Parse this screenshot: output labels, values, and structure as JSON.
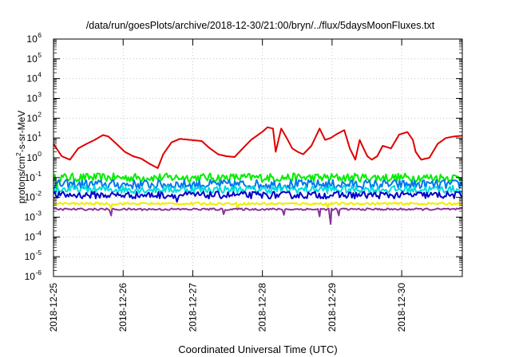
{
  "chart_data": {
    "type": "line",
    "title": "/data/run/goesPlots/archive/2018-12-30/21:00/bryn/../flux/5daysMoonFluxes.txt",
    "xlabel": "Coordinated Universal Time (UTC)",
    "ylabel": "protons/cm²-s-sr-MeV",
    "ylabel_parts": {
      "pre": "protons/cm",
      "sup": "2",
      "post": "-s-sr-MeV"
    },
    "y_scale": "log",
    "ylim": [
      1e-06,
      1000000.0
    ],
    "y_ticks": [
      {
        "exp": -6,
        "base": "10",
        "sup": "-6"
      },
      {
        "exp": -5,
        "base": "10",
        "sup": "-5"
      },
      {
        "exp": -4,
        "base": "10",
        "sup": "-4"
      },
      {
        "exp": -3,
        "base": "10",
        "sup": "-3"
      },
      {
        "exp": -2,
        "base": "10",
        "sup": "-2"
      },
      {
        "exp": -1,
        "base": "10",
        "sup": "-1"
      },
      {
        "exp": 0,
        "base": "10",
        "sup": "0"
      },
      {
        "exp": 1,
        "base": "10",
        "sup": "1"
      },
      {
        "exp": 2,
        "base": "10",
        "sup": "2"
      },
      {
        "exp": 3,
        "base": "10",
        "sup": "3"
      },
      {
        "exp": 4,
        "base": "10",
        "sup": "4"
      },
      {
        "exp": 5,
        "base": "10",
        "sup": "5"
      },
      {
        "exp": 6,
        "base": "10",
        "sup": "6"
      }
    ],
    "x_ticks": [
      "2018-12-25",
      "2018-12-26",
      "2018-12-27",
      "2018-12-28",
      "2018-12-29",
      "2018-12-30"
    ],
    "xlim_days": [
      0,
      5.87
    ],
    "grid": true,
    "legend": "none",
    "series": [
      {
        "color": "#e00000",
        "points": [
          [
            0.0,
            5
          ],
          [
            0.15,
            1.2
          ],
          [
            0.3,
            0.8
          ],
          [
            0.45,
            3
          ],
          [
            0.6,
            5
          ],
          [
            0.75,
            8
          ],
          [
            0.9,
            14
          ],
          [
            1.0,
            12
          ],
          [
            1.15,
            5
          ],
          [
            1.3,
            2
          ],
          [
            1.45,
            1.2
          ],
          [
            1.6,
            0.9
          ],
          [
            1.75,
            0.5
          ],
          [
            1.9,
            0.3
          ],
          [
            2.0,
            1.5
          ],
          [
            2.15,
            6
          ],
          [
            2.3,
            9
          ],
          [
            2.5,
            8
          ],
          [
            2.7,
            7
          ],
          [
            2.85,
            3
          ],
          [
            3.0,
            1.5
          ],
          [
            3.15,
            1.2
          ],
          [
            3.3,
            1.1
          ],
          [
            3.45,
            3
          ],
          [
            3.6,
            8
          ],
          [
            3.8,
            20
          ],
          [
            3.9,
            35
          ],
          [
            4.0,
            30
          ],
          [
            4.05,
            2
          ],
          [
            4.15,
            30
          ],
          [
            4.25,
            10
          ],
          [
            4.35,
            3
          ],
          [
            4.45,
            2
          ],
          [
            4.55,
            1.5
          ],
          [
            4.7,
            4
          ],
          [
            4.85,
            30
          ],
          [
            4.95,
            8
          ],
          [
            5.05,
            10
          ],
          [
            5.15,
            15
          ],
          [
            5.3,
            25
          ],
          [
            5.4,
            3
          ],
          [
            5.5,
            0.8
          ],
          [
            5.58,
            8
          ],
          [
            5.65,
            3
          ],
          [
            5.72,
            1.2
          ],
          [
            5.8,
            0.8
          ],
          [
            5.9,
            1.2
          ],
          [
            6.0,
            4
          ],
          [
            6.15,
            3
          ],
          [
            6.3,
            15
          ],
          [
            6.45,
            20
          ],
          [
            6.55,
            8
          ],
          [
            6.6,
            2
          ],
          [
            6.7,
            0.8
          ],
          [
            6.85,
            1
          ],
          [
            7.0,
            5
          ],
          [
            7.15,
            10
          ],
          [
            7.3,
            12
          ],
          [
            7.45,
            13
          ]
        ]
      },
      {
        "color": "#00ee00",
        "baseline": 0.1,
        "jitter": 0.22,
        "dips": [
          [
            0.06,
            0.02
          ]
        ]
      },
      {
        "color": "#0077ee",
        "baseline": 0.045,
        "jitter": 0.24,
        "dips": []
      },
      {
        "color": "#00dddd",
        "baseline": 0.025,
        "jitter": 0.2,
        "dips": []
      },
      {
        "color": "#0000cc",
        "baseline": 0.013,
        "jitter": 0.18,
        "dips": [
          [
            2.25,
            0.006
          ]
        ]
      },
      {
        "color": "#eeee00",
        "baseline": 0.0048,
        "jitter": 0.06,
        "dips": [
          [
            1.05,
            0.0028
          ],
          [
            3.35,
            0.003
          ],
          [
            5.0,
            0.0028
          ]
        ]
      },
      {
        "color": "#883399",
        "baseline": 0.0025,
        "jitter": 0.05,
        "dips": [
          [
            1.05,
            0.0012
          ],
          [
            3.1,
            0.0014
          ],
          [
            4.2,
            0.0013
          ],
          [
            4.85,
            0.0011
          ],
          [
            5.05,
            0.00045
          ],
          [
            5.2,
            0.0012
          ]
        ]
      }
    ]
  }
}
